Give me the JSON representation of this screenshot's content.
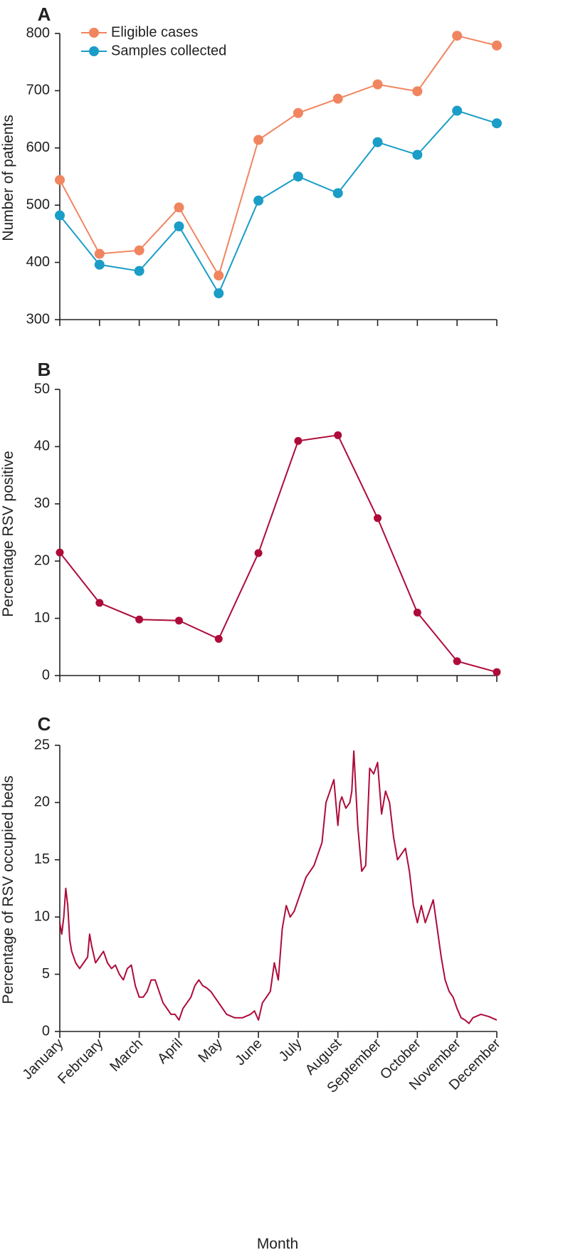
{
  "chart_data": [
    {
      "panel": "A",
      "type": "line",
      "categories": [
        "January",
        "February",
        "March",
        "April",
        "May",
        "June",
        "July",
        "August",
        "September",
        "October",
        "November",
        "December"
      ],
      "ylabel": "Number of patients",
      "ylim": [
        300,
        800
      ],
      "yticks": [
        300,
        400,
        500,
        600,
        700,
        800
      ],
      "legend": "top-left",
      "series": [
        {
          "name": "Eligible cases",
          "color": "#F0855F",
          "values": [
            544,
            415,
            421,
            496,
            377,
            614,
            661,
            686,
            711,
            699,
            796,
            779
          ]
        },
        {
          "name": "Samples collected",
          "color": "#1A9DC6",
          "values": [
            482,
            396,
            385,
            463,
            346,
            508,
            550,
            521,
            610,
            588,
            665,
            643
          ]
        }
      ]
    },
    {
      "panel": "B",
      "type": "line",
      "categories": [
        "January",
        "February",
        "March",
        "April",
        "May",
        "June",
        "July",
        "August",
        "September",
        "October",
        "November",
        "December"
      ],
      "ylabel": "Percentage RSV positive",
      "ylim": [
        0,
        50
      ],
      "yticks": [
        0,
        10,
        20,
        30,
        40,
        50
      ],
      "series": [
        {
          "color": "#AE0B3A",
          "values": [
            21.5,
            12.7,
            9.8,
            9.6,
            6.4,
            21.4,
            41.0,
            42.0,
            27.5,
            11.0,
            2.5,
            0.6
          ]
        }
      ]
    },
    {
      "panel": "C",
      "type": "line",
      "categories": [
        "January",
        "February",
        "March",
        "April",
        "May",
        "June",
        "July",
        "August",
        "September",
        "October",
        "November",
        "December"
      ],
      "ylabel": "Percentage of RSV occupied beds",
      "xlabel": "Month",
      "ylim": [
        0,
        25
      ],
      "yticks": [
        0,
        5,
        10,
        15,
        20,
        25
      ],
      "series": [
        {
          "color": "#AE0B3A",
          "x": [
            0,
            0.05,
            0.1,
            0.15,
            0.2,
            0.25,
            0.3,
            0.4,
            0.5,
            0.6,
            0.7,
            0.75,
            0.8,
            0.9,
            1.0,
            1.1,
            1.2,
            1.3,
            1.4,
            1.5,
            1.6,
            1.7,
            1.8,
            1.9,
            2.0,
            2.1,
            2.2,
            2.3,
            2.4,
            2.5,
            2.6,
            2.7,
            2.8,
            2.9,
            3.0,
            3.1,
            3.2,
            3.3,
            3.4,
            3.5,
            3.6,
            3.7,
            3.8,
            3.9,
            4.0,
            4.2,
            4.4,
            4.6,
            4.8,
            4.9,
            5.0,
            5.1,
            5.2,
            5.3,
            5.4,
            5.5,
            5.6,
            5.7,
            5.8,
            5.9,
            6.0,
            6.1,
            6.2,
            6.3,
            6.4,
            6.5,
            6.6,
            6.7,
            6.8,
            6.9,
            7.0,
            7.05,
            7.1,
            7.2,
            7.3,
            7.35,
            7.4,
            7.5,
            7.6,
            7.7,
            7.8,
            7.9,
            8.0,
            8.1,
            8.2,
            8.3,
            8.4,
            8.5,
            8.6,
            8.7,
            8.8,
            8.9,
            9.0,
            9.1,
            9.2,
            9.3,
            9.4,
            9.5,
            9.6,
            9.7,
            9.8,
            9.9,
            10.0,
            10.1,
            10.2,
            10.3,
            10.4,
            10.6,
            10.8,
            11.0
          ],
          "y": [
            9.5,
            8.5,
            10,
            12.5,
            11,
            8,
            7,
            6,
            5.5,
            6,
            6.5,
            8.5,
            7.5,
            6,
            6.5,
            7,
            6,
            5.5,
            5.8,
            5,
            4.5,
            5.5,
            5.8,
            4,
            3,
            3,
            3.5,
            4.5,
            4.5,
            3.5,
            2.5,
            2,
            1.5,
            1.5,
            1,
            2,
            2.5,
            3,
            4,
            4.5,
            4,
            3.8,
            3.5,
            3,
            2.5,
            1.5,
            1.2,
            1.2,
            1.5,
            1.8,
            1,
            2.5,
            3,
            3.5,
            6,
            4.5,
            9,
            11,
            10,
            10.5,
            11.5,
            12.5,
            13.5,
            14,
            14.5,
            15.5,
            16.5,
            20,
            21,
            22,
            18,
            20,
            20.5,
            19.5,
            20,
            21,
            24.5,
            18,
            14,
            14.5,
            23,
            22.5,
            23.5,
            19,
            21,
            20,
            17,
            15,
            15.5,
            16,
            14,
            11,
            9.5,
            11,
            9.5,
            10.5,
            11.5,
            9,
            6.5,
            4.5,
            3.5,
            3,
            2,
            1.2,
            1,
            0.7,
            1.2,
            1.5,
            1.3,
            1.0
          ]
        }
      ]
    }
  ]
}
